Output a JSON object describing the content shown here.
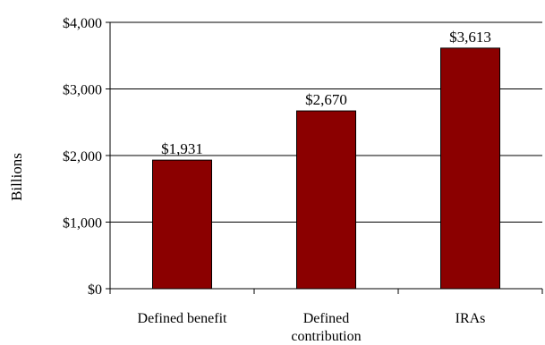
{
  "chart_data": {
    "type": "bar",
    "categories": [
      "Defined benefit",
      "Defined\ncontribution",
      "IRAs"
    ],
    "values": [
      1931,
      2670,
      3613
    ],
    "data_labels": [
      "$1,931",
      "$2,670",
      "$3,613"
    ],
    "ylabel": "Billions",
    "ylim": [
      0,
      4000
    ],
    "yticks": [
      0,
      1000,
      2000,
      3000,
      4000
    ],
    "ytick_labels": [
      "$0",
      "$1,000",
      "$2,000",
      "$3,000",
      "$4,000"
    ],
    "grid": true,
    "legend": "none",
    "bar_color": "#8B0000"
  }
}
